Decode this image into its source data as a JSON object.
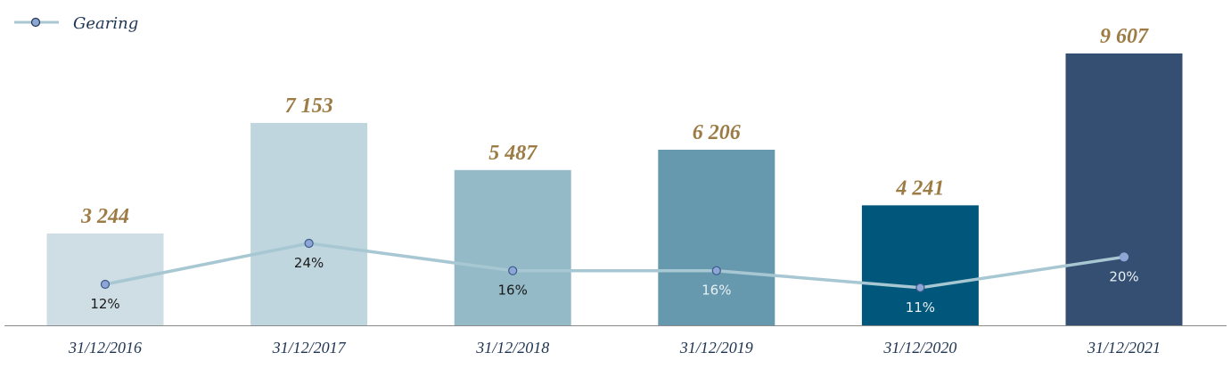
{
  "chart_data": {
    "type": "bar",
    "categories": [
      "31/12/2016",
      "31/12/2017",
      "31/12/2018",
      "31/12/2019",
      "31/12/2020",
      "31/12/2021"
    ],
    "values": [
      3244,
      7153,
      5487,
      6206,
      4241,
      9607
    ],
    "value_labels": [
      "3 244",
      "7 153",
      "5 487",
      "6 206",
      "4 241",
      "9 607"
    ],
    "bar_colors": [
      "#cfdee5",
      "#bfd6de",
      "#94b9c7",
      "#6699ae",
      "#00577b",
      "#344f72"
    ],
    "ylim": [
      0,
      9607
    ],
    "line_series": {
      "name": "Gearing",
      "values": [
        12,
        24,
        16,
        16,
        11,
        20
      ],
      "labels": [
        "12%",
        "24%",
        "16%",
        "16%",
        "11%",
        "20%"
      ],
      "label_colors": [
        "#1a1a1a",
        "#1a1a1a",
        "#1a1a1a",
        "#e8f0f4",
        "#e8f0f4",
        "#e8f0f4"
      ],
      "line_color": "#a7c7d3",
      "marker_fill": "#8ea6d6",
      "marker_stroke": "#3b5a8a"
    },
    "legend": {
      "entries": [
        "Gearing"
      ],
      "position": "top-left"
    },
    "grid": false,
    "value_label_color": "#9c7b45",
    "axis_color": "#8a8a8a"
  }
}
